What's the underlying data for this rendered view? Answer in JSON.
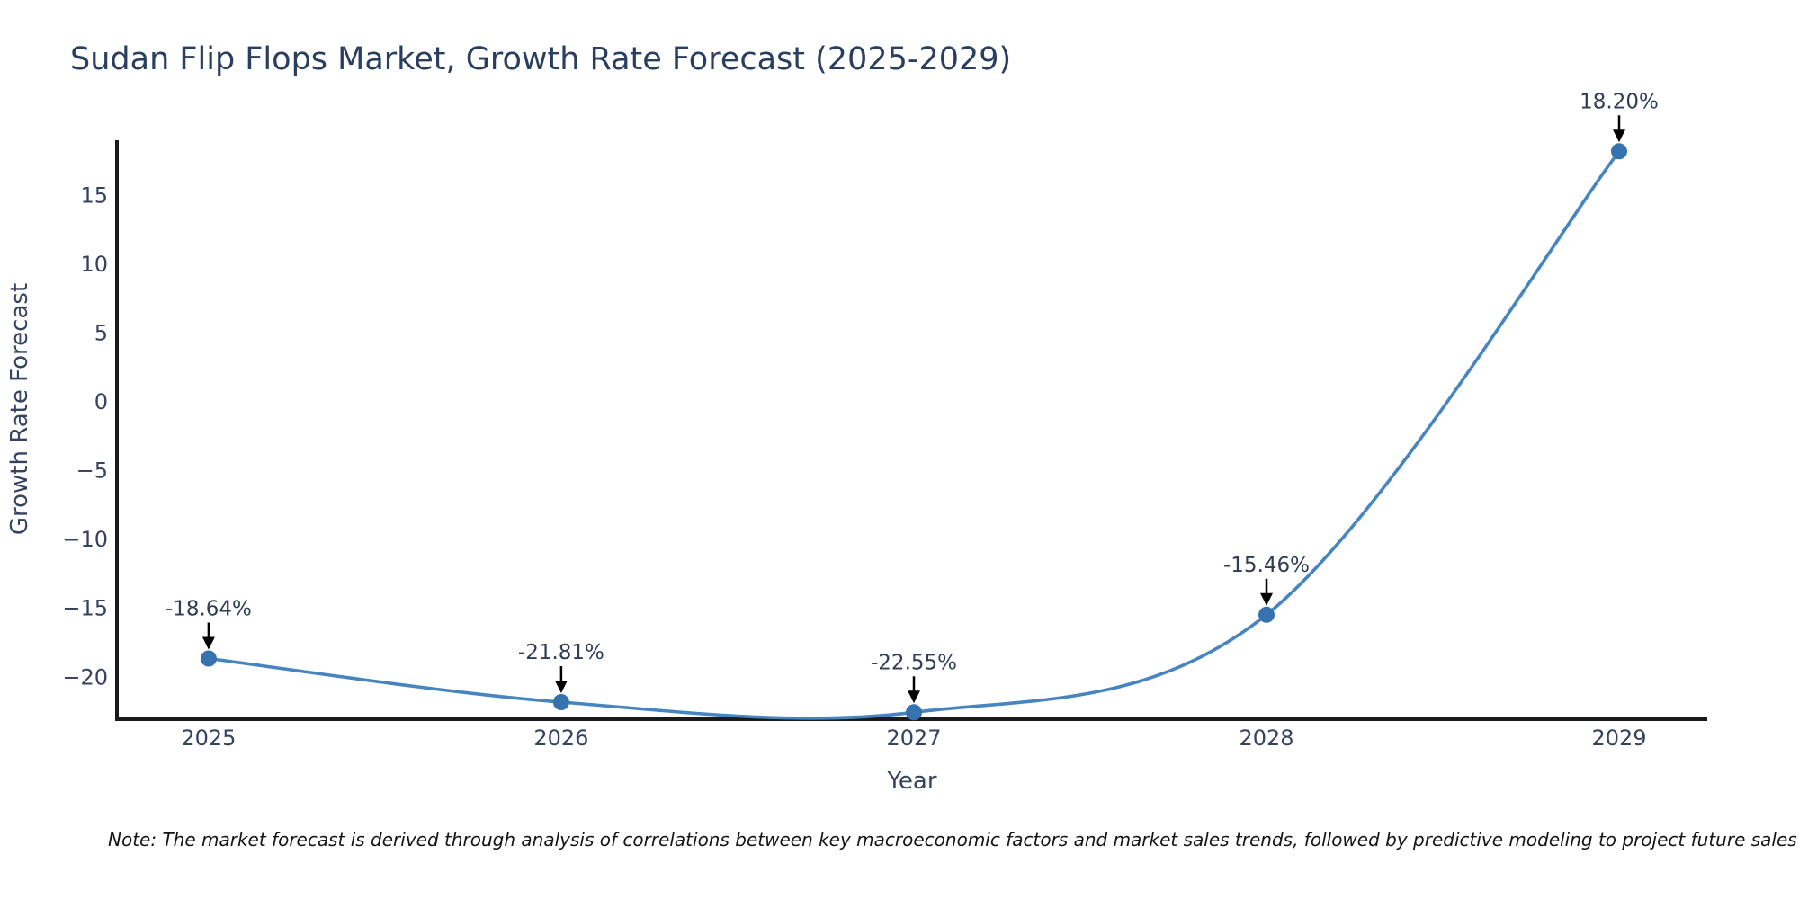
{
  "chart_data": {
    "type": "line",
    "title": "Sudan Flip Flops Market, Growth Rate Forecast (2025-2029)",
    "xlabel": "Year",
    "ylabel": "Growth Rate Forecast",
    "x": [
      2025,
      2026,
      2027,
      2028,
      2029
    ],
    "values": [
      -18.64,
      -21.81,
      -22.55,
      -15.46,
      18.2
    ],
    "annotations": [
      "-18.64%",
      "-21.81%",
      "-22.55%",
      "-15.46%",
      "18.20%"
    ],
    "x_ticks": [
      2025,
      2026,
      2027,
      2028,
      2029
    ],
    "y_ticks": [
      15,
      10,
      5,
      0,
      -5,
      -10,
      -15,
      -20
    ],
    "xlim": [
      2024.74,
      2029.25
    ],
    "ylim": [
      -23.05,
      18.87
    ],
    "grid": false,
    "legend_position": "none",
    "line_shape": "spline",
    "note": "Note: The market forecast is derived through analysis of correlations between key macroeconomic factors and market sales trends, followed by predictive modeling to project future sales",
    "colors": {
      "background": "#ffffff",
      "line": "#4685bf",
      "marker": "#3572ae",
      "axis": "#1a1a1a",
      "title_text": "#2a3f5f",
      "tick_text": "#36435f",
      "annotation_text": "#2f3d55",
      "arrow": "#000000",
      "note_text": "#141414"
    }
  }
}
